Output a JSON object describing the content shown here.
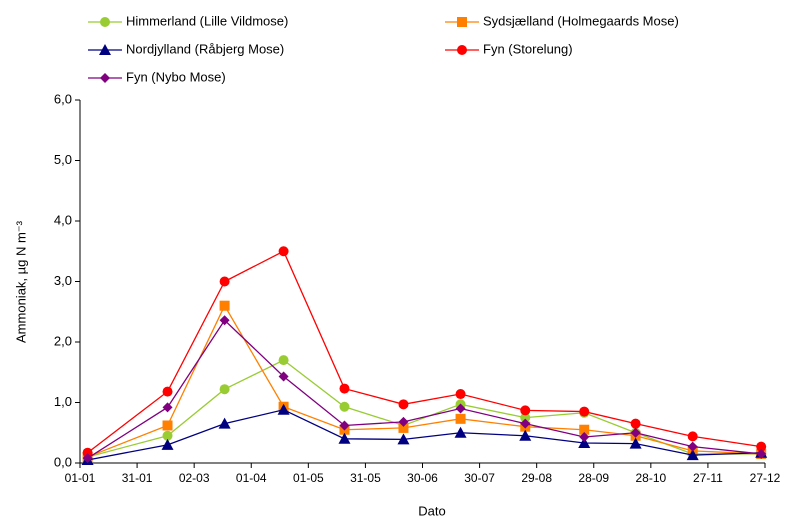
{
  "chart_data": {
    "type": "line",
    "xlabel": "Dato",
    "ylabel": "Ammoniak, µg N m⁻³",
    "x": [
      4,
      46,
      76,
      107,
      139,
      170,
      200,
      234,
      265,
      292,
      322,
      358
    ],
    "series": [
      {
        "name": "Himmerland (Lille Vildmose)",
        "color": "#99cc33",
        "marker": "circle",
        "values": [
          0.1,
          0.45,
          1.22,
          1.7,
          0.93,
          0.62,
          0.97,
          0.75,
          0.83,
          0.5,
          0.15,
          0.15
        ]
      },
      {
        "name": "Sydsjælland (Holmegaards Mose)",
        "color": "#ff8000",
        "marker": "square",
        "values": [
          0.1,
          0.62,
          2.6,
          0.93,
          0.55,
          0.58,
          0.73,
          0.6,
          0.55,
          0.45,
          0.2,
          0.15
        ]
      },
      {
        "name": "Nordjylland (Råbjerg Mose)",
        "color": "#000080",
        "marker": "triangle",
        "values": [
          0.05,
          0.3,
          0.65,
          0.88,
          0.4,
          0.39,
          0.5,
          0.45,
          0.33,
          0.32,
          0.13,
          0.17
        ]
      },
      {
        "name": "Fyn (Storelung)",
        "color": "#ff0000",
        "marker": "circle",
        "values": [
          0.17,
          1.18,
          3.0,
          3.5,
          1.23,
          0.97,
          1.14,
          0.87,
          0.85,
          0.65,
          0.44,
          0.27
        ]
      },
      {
        "name": "Fyn (Nybo Mose)",
        "color": "#800080",
        "marker": "diamond",
        "values": [
          0.08,
          0.92,
          2.36,
          1.43,
          0.62,
          0.68,
          0.9,
          0.65,
          0.43,
          0.5,
          0.27,
          0.15
        ]
      }
    ],
    "xlim": [
      0,
      360
    ],
    "xticks": [
      {
        "value": 0,
        "label": "01-01"
      },
      {
        "value": 30,
        "label": "31-01"
      },
      {
        "value": 60,
        "label": "02-03"
      },
      {
        "value": 90,
        "label": "01-04"
      },
      {
        "value": 120,
        "label": "01-05"
      },
      {
        "value": 150,
        "label": "31-05"
      },
      {
        "value": 180,
        "label": "30-06"
      },
      {
        "value": 210,
        "label": "30-07"
      },
      {
        "value": 240,
        "label": "29-08"
      },
      {
        "value": 270,
        "label": "28-09"
      },
      {
        "value": 300,
        "label": "28-10"
      },
      {
        "value": 330,
        "label": "27-11"
      },
      {
        "value": 360,
        "label": "27-12"
      }
    ],
    "ylim": [
      0,
      6
    ],
    "yticks": [
      {
        "value": 0,
        "label": "0,0"
      },
      {
        "value": 1,
        "label": "1,0"
      },
      {
        "value": 2,
        "label": "2,0"
      },
      {
        "value": 3,
        "label": "3,0"
      },
      {
        "value": 4,
        "label": "4,0"
      },
      {
        "value": 5,
        "label": "5,0"
      },
      {
        "value": 6,
        "label": "6,0"
      }
    ],
    "grid": false
  }
}
